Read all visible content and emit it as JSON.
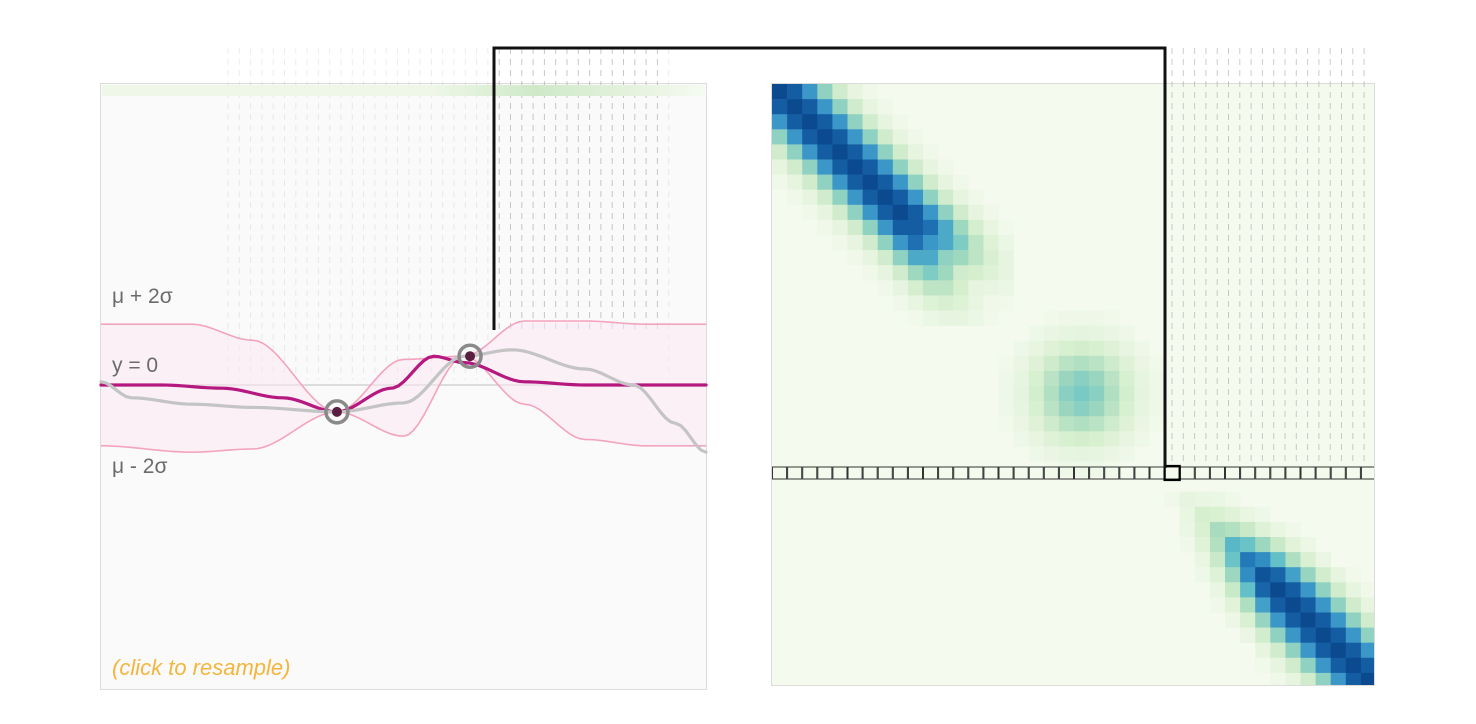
{
  "left_panel": {
    "label_upper": "μ + 2σ",
    "label_zero": "y = 0",
    "label_lower": "μ - 2σ",
    "resample_hint": "(click to resample)"
  },
  "chart_data": {
    "type": "line",
    "title": "",
    "series": [
      {
        "role": "mean",
        "color": "#b5187e",
        "x": [
          0,
          0.1,
          0.2,
          0.3,
          0.39,
          0.48,
          0.55,
          0.6,
          0.7,
          0.8,
          0.9,
          1.0
        ],
        "y": [
          0,
          0,
          -0.05,
          -0.2,
          -0.42,
          -0.05,
          0.45,
          0.35,
          0.05,
          0,
          0,
          0
        ]
      },
      {
        "role": "sample",
        "color": "#c4c4c4",
        "x": [
          0,
          0.05,
          0.15,
          0.25,
          0.39,
          0.5,
          0.6,
          0.68,
          0.8,
          0.88,
          0.95,
          1.0
        ],
        "y": [
          0.05,
          -0.2,
          -0.3,
          -0.35,
          -0.42,
          -0.28,
          0.45,
          0.55,
          0.25,
          0.0,
          -0.6,
          -1.05
        ]
      }
    ],
    "band": {
      "color": "#f3a3bd",
      "x": [
        0,
        0.15,
        0.25,
        0.39,
        0.5,
        0.6,
        0.7,
        0.8,
        0.9,
        1.0
      ],
      "upper": [
        0.95,
        0.95,
        0.7,
        -0.42,
        0.4,
        0.45,
        1.0,
        1.0,
        0.95,
        0.95
      ],
      "lower": [
        -0.95,
        -1.05,
        -1.0,
        -0.42,
        -0.8,
        0.45,
        -0.3,
        -0.85,
        -0.95,
        -0.95
      ]
    },
    "observations": [
      {
        "x": 0.39,
        "y": -0.42
      },
      {
        "x": 0.61,
        "y": 0.45
      }
    ],
    "ylim": [
      -4.6,
      4.6
    ]
  },
  "covariance": {
    "type": "heatmap",
    "grid_size": 40,
    "selected_index": 26,
    "colormap": [
      "#f4faee",
      "#d6efce",
      "#a6dbbd",
      "#66c2c8",
      "#3895c8",
      "#1a6aaf",
      "#0b4a8f"
    ]
  }
}
